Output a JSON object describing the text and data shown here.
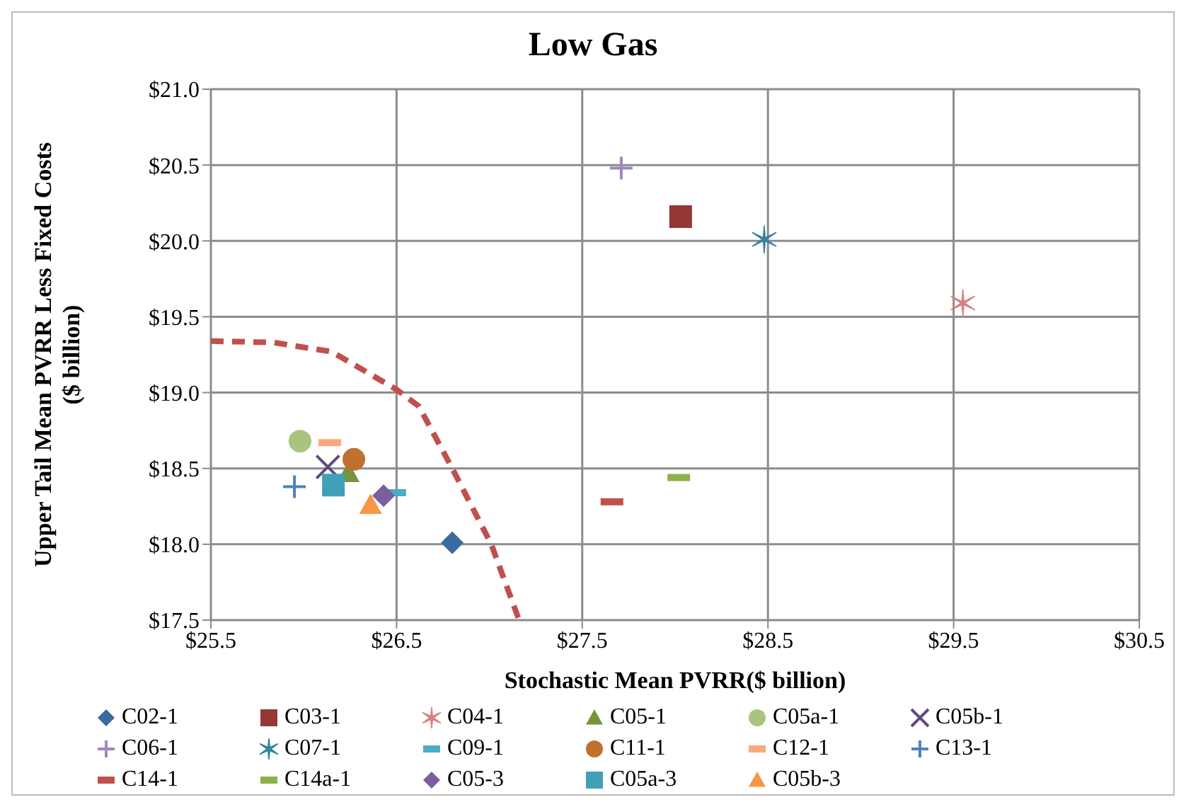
{
  "chart_data": {
    "type": "scatter",
    "title": "Low Gas",
    "xlabel": "Stochastic Mean PVRR($ billion)",
    "ylabel": "Upper Tail Mean PVRR Less Fixed Costs\n($ billion)",
    "xlim": [
      25.5,
      30.5
    ],
    "xticks": [
      {
        "value": 25.5,
        "label": "$25.5"
      },
      {
        "value": 26.5,
        "label": "$26.5"
      },
      {
        "value": 27.5,
        "label": "$27.5"
      },
      {
        "value": 28.5,
        "label": "$28.5"
      },
      {
        "value": 29.5,
        "label": "$29.5"
      },
      {
        "value": 30.5,
        "label": "$30.5"
      }
    ],
    "ylim": [
      17.5,
      21.0
    ],
    "yticks": [
      {
        "value": 17.5,
        "label": "$17.5"
      },
      {
        "value": 18,
        "label": "$18.0"
      },
      {
        "value": 18.5,
        "label": "$18.5"
      },
      {
        "value": 19,
        "label": "$19.0"
      },
      {
        "value": 19.5,
        "label": "$19.5"
      },
      {
        "value": 20,
        "label": "$20.0"
      },
      {
        "value": 20.5,
        "label": "$20.5"
      },
      {
        "value": 21,
        "label": "$21.0"
      }
    ],
    "grid": true,
    "legend": "bottom",
    "series": [
      {
        "name": "C02-1",
        "color": "#3a6aa0",
        "marker": "diamond",
        "x": [
          26.8
        ],
        "values": [
          18.01
        ]
      },
      {
        "name": "C03-1",
        "color": "#953735",
        "marker": "square",
        "x": [
          28.03
        ],
        "values": [
          20.16
        ]
      },
      {
        "name": "C04-1",
        "color": "#d98080",
        "marker": "cross",
        "x": [
          29.55
        ],
        "values": [
          19.59
        ]
      },
      {
        "name": "C05-1",
        "color": "#77933c",
        "marker": "triangle",
        "x": [
          26.24
        ],
        "values": [
          18.47
        ]
      },
      {
        "name": "C05a-1",
        "color": "#a9c47f",
        "marker": "circle",
        "x": [
          25.98
        ],
        "values": [
          18.68
        ]
      },
      {
        "name": "C05b-1",
        "color": "#604a7b",
        "marker": "x",
        "x": [
          26.13
        ],
        "values": [
          18.51
        ]
      },
      {
        "name": "C06-1",
        "color": "#9f87c0",
        "marker": "plus",
        "x": [
          27.71
        ],
        "values": [
          20.48
        ]
      },
      {
        "name": "C07-1",
        "color": "#31859c",
        "marker": "cross",
        "x": [
          28.48
        ],
        "values": [
          20.01
        ]
      },
      {
        "name": "C09-1",
        "color": "#4bacc6",
        "x": [
          26.49
        ],
        "values": [
          18.34
        ]
      },
      {
        "name": "C11-1",
        "color": "#c0712f",
        "marker": "circle",
        "x": [
          26.27
        ],
        "values": [
          18.56
        ]
      },
      {
        "name": "C12-1",
        "color": "#f9a97c",
        "x": [
          26.14
        ],
        "values": [
          18.67
        ]
      },
      {
        "name": "C13-1",
        "color": "#4f81bd",
        "marker": "plus",
        "x": [
          25.95
        ],
        "values": [
          18.38
        ]
      },
      {
        "name": "C14-1",
        "color": "#c0504d",
        "x": [
          27.66
        ],
        "values": [
          18.28
        ]
      },
      {
        "name": "C14a-1",
        "color": "#8db048",
        "x": [
          28.02
        ],
        "values": [
          18.44
        ]
      },
      {
        "name": "C05-3",
        "color": "#7a5ea0",
        "marker": "diamond",
        "x": [
          26.43
        ],
        "values": [
          18.32
        ]
      },
      {
        "name": "C05a-3",
        "color": "#3fa0b8",
        "marker": "square",
        "x": [
          26.16
        ],
        "values": [
          18.39
        ]
      },
      {
        "name": "C05b-3",
        "color": "#f79646",
        "marker": "triangle",
        "x": [
          26.36
        ],
        "values": [
          18.26
        ]
      },
      {
        "type": "line",
        "color": "#c0504d",
        "line_style": "dashed",
        "marker": "none",
        "x": [
          25.5,
          25.84,
          25.99,
          26.15,
          26.5,
          26.62,
          26.8,
          27.01,
          27.16
        ],
        "values": [
          19.34,
          19.33,
          19.3,
          19.27,
          19.02,
          18.91,
          18.5,
          18.0,
          17.5
        ]
      }
    ]
  }
}
